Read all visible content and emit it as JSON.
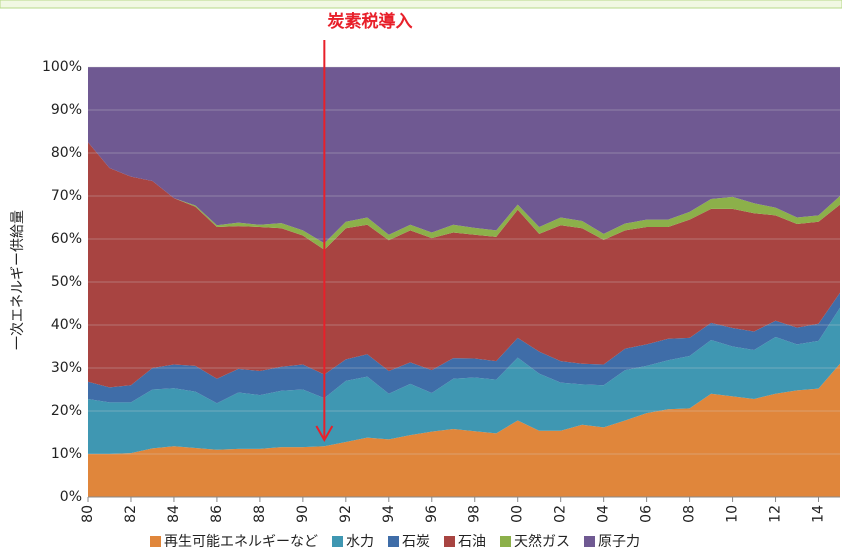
{
  "chart_data": {
    "type": "stacked_area",
    "annotation": {
      "text": "炭素税導入",
      "x": 1991,
      "color": "#e8202a"
    },
    "ylabel": "一次エネルギー供給量",
    "x": [
      1980,
      1981,
      1982,
      1983,
      1984,
      1985,
      1986,
      1987,
      1988,
      1989,
      1990,
      1991,
      1992,
      1993,
      1994,
      1995,
      1996,
      1997,
      1998,
      1999,
      2000,
      2001,
      2002,
      2003,
      2004,
      2005,
      2006,
      2007,
      2008,
      2009,
      2010,
      2011,
      2012,
      2013,
      2014,
      2015
    ],
    "xlim": [
      1980,
      2015
    ],
    "xticks": [
      {
        "value": 1980,
        "label": "80"
      },
      {
        "value": 1982,
        "label": "82"
      },
      {
        "value": 1984,
        "label": "84"
      },
      {
        "value": 1986,
        "label": "86"
      },
      {
        "value": 1988,
        "label": "88"
      },
      {
        "value": 1990,
        "label": "90"
      },
      {
        "value": 1992,
        "label": "92"
      },
      {
        "value": 1994,
        "label": "94"
      },
      {
        "value": 1996,
        "label": "96"
      },
      {
        "value": 1998,
        "label": "98"
      },
      {
        "value": 2000,
        "label": "00"
      },
      {
        "value": 2002,
        "label": "02"
      },
      {
        "value": 2004,
        "label": "04"
      },
      {
        "value": 2006,
        "label": "06"
      },
      {
        "value": 2008,
        "label": "08"
      },
      {
        "value": 2010,
        "label": "10"
      },
      {
        "value": 2012,
        "label": "12"
      },
      {
        "value": 2014,
        "label": "14"
      }
    ],
    "ylim": [
      0,
      100
    ],
    "yticks": [
      {
        "value": 0,
        "label": "0%"
      },
      {
        "value": 10,
        "label": "10%"
      },
      {
        "value": 20,
        "label": "20%"
      },
      {
        "value": 30,
        "label": "30%"
      },
      {
        "value": 40,
        "label": "40%"
      },
      {
        "value": 50,
        "label": "50%"
      },
      {
        "value": 60,
        "label": "60%"
      },
      {
        "value": 70,
        "label": "70%"
      },
      {
        "value": 80,
        "label": "80%"
      },
      {
        "value": 90,
        "label": "90%"
      },
      {
        "value": 100,
        "label": "100%"
      }
    ],
    "grid": true,
    "legend": "bottom",
    "series": [
      {
        "name": "再生可能エネルギーなど",
        "color": "#e0863b",
        "values": [
          10,
          10,
          10.2,
          11.3,
          11.8,
          11.4,
          11,
          11.2,
          11.2,
          11.6,
          11.6,
          11.8,
          12.8,
          13.8,
          13.4,
          14.4,
          15.2,
          15.8,
          15.3,
          14.8,
          17.8,
          15.4,
          15.4,
          16.8,
          16.2,
          17.8,
          19.5,
          20.4,
          20.6,
          24,
          23.4,
          22.8,
          24,
          24.8,
          25.2,
          31
        ]
      },
      {
        "name": "水力",
        "color": "#3f97b2",
        "values": [
          12.8,
          12,
          11.8,
          13.7,
          13.5,
          13.1,
          10.8,
          13.1,
          12.5,
          13.1,
          13.4,
          11.2,
          14.2,
          14.2,
          10.6,
          11.9,
          9,
          11.7,
          12.5,
          12.5,
          14.6,
          13.3,
          11.2,
          9.4,
          9.8,
          11.7,
          11,
          11.4,
          12.2,
          12.5,
          11.6,
          11.4,
          13.2,
          10.7,
          11.1,
          13
        ]
      },
      {
        "name": "石炭",
        "color": "#3f6da8",
        "values": [
          4,
          3.5,
          4,
          5,
          5.5,
          6,
          5.7,
          5.5,
          5.6,
          5.6,
          5.8,
          5.5,
          5,
          5.2,
          5.3,
          5,
          5.3,
          4.8,
          4.4,
          4.3,
          4.6,
          5.1,
          5,
          4.8,
          4.8,
          5,
          5,
          5,
          4.2,
          4,
          4.3,
          4.3,
          3.8,
          3.9,
          4,
          3.5
        ]
      },
      {
        "name": "石油",
        "color": "#a84441",
        "values": [
          55.7,
          51,
          48.5,
          43.5,
          38.7,
          37,
          35.3,
          33.2,
          33.5,
          32.2,
          30,
          29,
          30.5,
          30.1,
          30.4,
          30.7,
          30.7,
          29.2,
          28.8,
          28.9,
          29.8,
          27.4,
          31.6,
          31.5,
          29,
          27.5,
          27.3,
          26,
          27.5,
          26.5,
          27.7,
          27.5,
          24.5,
          24.1,
          23.7,
          20.5
        ]
      },
      {
        "name": "天然ガス",
        "color": "#8cb04a",
        "values": [
          0,
          0,
          0,
          0,
          0,
          0.3,
          0.4,
          0.8,
          0.5,
          1.2,
          1.2,
          1.5,
          1.5,
          1.7,
          1.3,
          1.3,
          1.3,
          1.8,
          1.6,
          1.5,
          1.2,
          1.6,
          1.8,
          1.7,
          1.4,
          1.6,
          1.7,
          1.7,
          1.8,
          2.3,
          2.8,
          2.3,
          1.8,
          1.5,
          1.5,
          2
        ]
      },
      {
        "name": "原子力",
        "color": "#6f5992",
        "values": [
          17.5,
          23.5,
          25.5,
          26.5,
          30.5,
          32.2,
          36.8,
          36.2,
          36.7,
          36.3,
          38,
          41,
          36,
          35,
          39,
          36.7,
          38.5,
          36.7,
          37.4,
          38,
          32,
          37.2,
          35,
          35.8,
          38.8,
          36.4,
          35.5,
          35.5,
          33.7,
          30.7,
          30.2,
          31.7,
          32.7,
          35,
          34.5,
          30
        ]
      }
    ]
  }
}
